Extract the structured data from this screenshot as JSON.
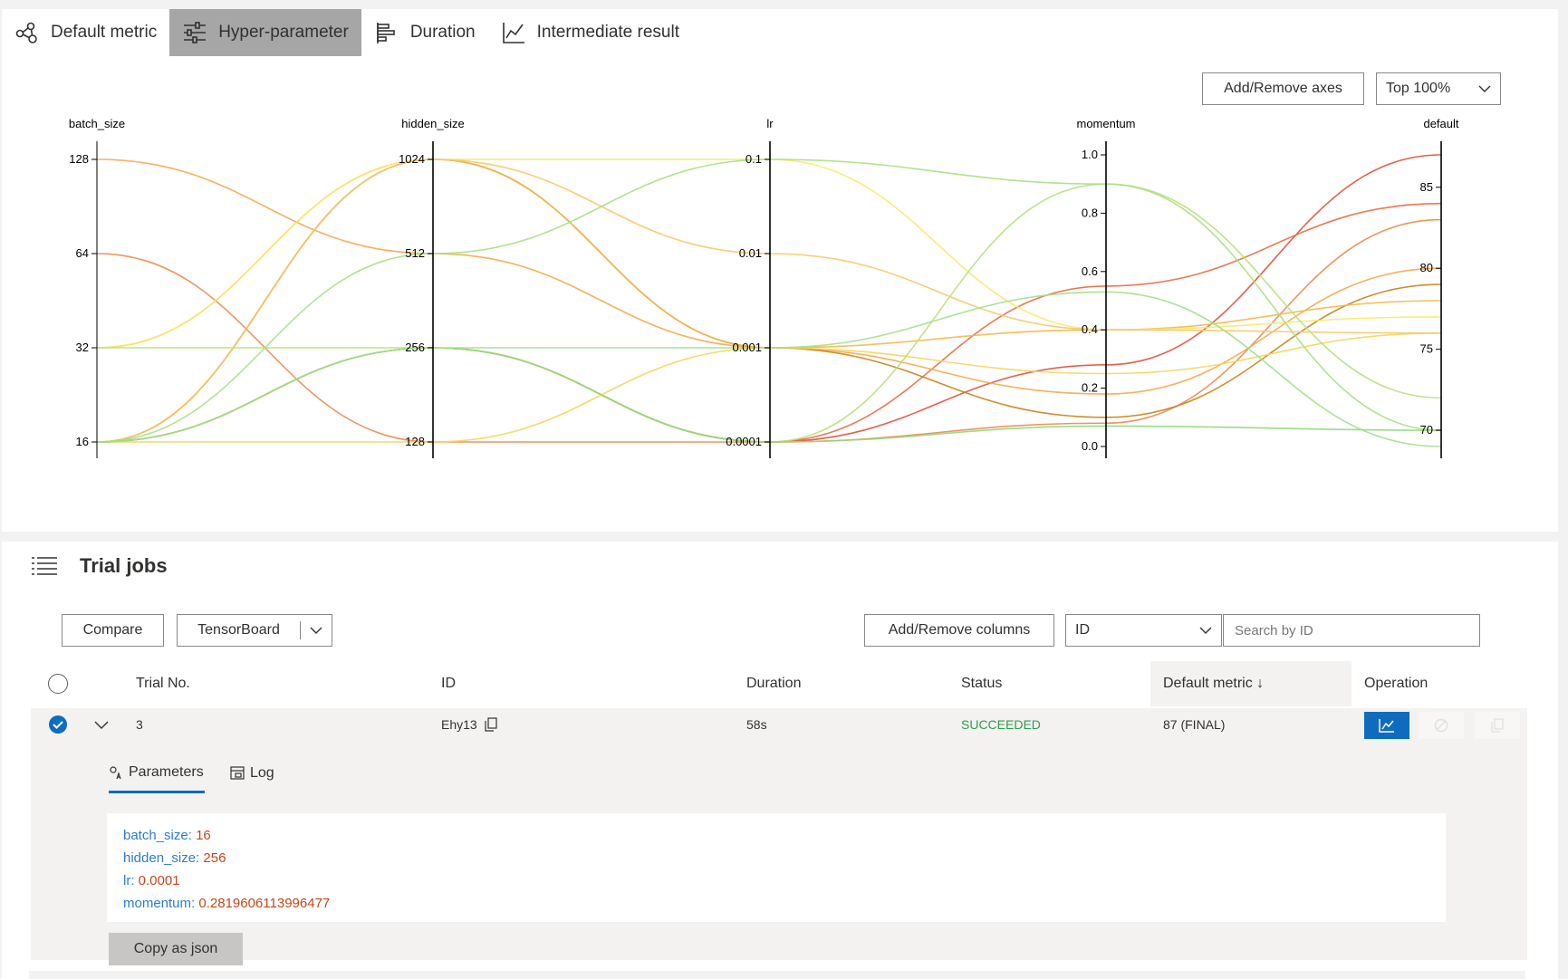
{
  "tabs": [
    {
      "label": "Default metric",
      "icon": "graph-nodes-icon",
      "active": false
    },
    {
      "label": "Hyper-parameter",
      "icon": "sliders-icon",
      "active": true
    },
    {
      "label": "Duration",
      "icon": "bar-chart-horizontal-icon",
      "active": false
    },
    {
      "label": "Intermediate result",
      "icon": "line-chart-icon",
      "active": false
    }
  ],
  "chart_toolbar": {
    "add_remove_axes": "Add/Remove axes",
    "top_filter": "Top 100%"
  },
  "chart_data": {
    "type": "parallel-coordinates",
    "axes": [
      {
        "name": "batch_size",
        "scale": "log2",
        "ticks": [
          "128",
          "64",
          "32",
          "16"
        ],
        "tick_values": [
          128,
          64,
          32,
          16
        ]
      },
      {
        "name": "hidden_size",
        "scale": "log2",
        "ticks": [
          "1024",
          "512",
          "256",
          "128"
        ],
        "tick_values": [
          1024,
          512,
          256,
          128
        ]
      },
      {
        "name": "lr",
        "scale": "log10",
        "ticks": [
          "0.1",
          "0.01",
          "0.001",
          "0.0001"
        ],
        "tick_values": [
          0.1,
          0.01,
          0.001,
          0.0001
        ]
      },
      {
        "name": "momentum",
        "scale": "linear",
        "ticks": [
          "1.0",
          "0.8",
          "0.6",
          "0.4",
          "0.2",
          "0.0"
        ],
        "tick_values": [
          1.0,
          0.8,
          0.6,
          0.4,
          0.2,
          0.0
        ],
        "range": [
          0.0,
          1.0
        ]
      },
      {
        "name": "default",
        "scale": "linear",
        "ticks": [
          "85",
          "80",
          "75",
          "70"
        ],
        "tick_values": [
          85,
          80,
          75,
          70
        ],
        "range": [
          69,
          87
        ]
      }
    ],
    "lines": [
      {
        "values": [
          16,
          256,
          0.0001,
          0.28,
          87
        ],
        "color": "#e0503a"
      },
      {
        "values": [
          16,
          256,
          0.0001,
          0.55,
          84
        ],
        "color": "#e86a40"
      },
      {
        "values": [
          64,
          128,
          0.0001,
          0.08,
          83
        ],
        "color": "#ec8a4c"
      },
      {
        "values": [
          128,
          512,
          0.001,
          0.18,
          80
        ],
        "color": "#f4a850"
      },
      {
        "values": [
          16,
          1024,
          0.001,
          0.1,
          79
        ],
        "color": "#c8821a"
      },
      {
        "values": [
          32,
          1024,
          0.001,
          0.4,
          78
        ],
        "color": "#f6b847"
      },
      {
        "values": [
          32,
          1024,
          0.1,
          0.4,
          77
        ],
        "color": "#f8e96a"
      },
      {
        "values": [
          16,
          128,
          0.001,
          0.25,
          76
        ],
        "color": "#f5d55a"
      },
      {
        "values": [
          16,
          1024,
          0.01,
          0.4,
          76
        ],
        "color": "#f8c868"
      },
      {
        "values": [
          32,
          256,
          0.0001,
          0.9,
          72
        ],
        "color": "#b8e07a"
      },
      {
        "values": [
          16,
          512,
          0.1,
          0.9,
          70
        ],
        "color": "#a8e080"
      },
      {
        "values": [
          16,
          256,
          0.0001,
          0.07,
          70
        ],
        "color": "#90d87a"
      },
      {
        "values": [
          16,
          256,
          0.001,
          0.53,
          69
        ],
        "color": "#a0e088"
      }
    ]
  },
  "trials": {
    "title": "Trial jobs",
    "compare": "Compare",
    "tensorboard": "TensorBoard",
    "add_remove_columns": "Add/Remove columns",
    "search_field": "ID",
    "search_placeholder": "Search by ID",
    "columns": {
      "trial_no": "Trial No.",
      "id": "ID",
      "duration": "Duration",
      "status": "Status",
      "default_metric": "Default metric ↓",
      "operation": "Operation"
    },
    "row": {
      "trial_no": "3",
      "id": "Ehy13",
      "duration": "58s",
      "status": "SUCCEEDED",
      "default_metric": "87 (FINAL)"
    },
    "detail_tabs": {
      "parameters": "Parameters",
      "log": "Log"
    },
    "parameters": [
      {
        "key": "batch_size:",
        "value": "16"
      },
      {
        "key": "hidden_size:",
        "value": "256"
      },
      {
        "key": "lr:",
        "value": "0.0001"
      },
      {
        "key": "momentum:",
        "value": "0.2819606113996477"
      }
    ],
    "copy_json": "Copy as json"
  }
}
